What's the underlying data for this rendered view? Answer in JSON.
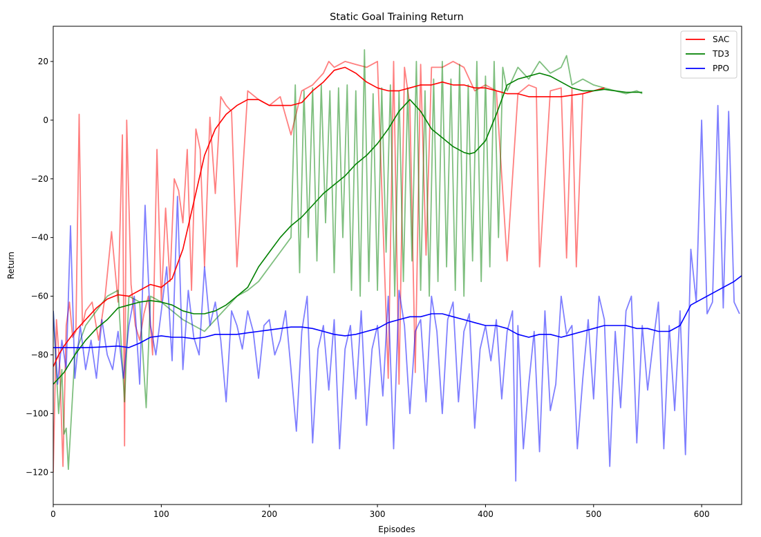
{
  "chart_data": {
    "type": "line",
    "title": "Static Goal Training Return",
    "xlabel": "Episodes",
    "ylabel": "Return",
    "xlim": [
      0,
      637
    ],
    "ylim": [
      -131,
      32
    ],
    "xticks": [
      0,
      100,
      200,
      300,
      400,
      500,
      600
    ],
    "yticks": [
      -120,
      -100,
      -80,
      -60,
      -40,
      -20,
      0,
      20
    ],
    "legend_position": "top-right",
    "grid": false,
    "series": [
      {
        "name": "SAC",
        "color": "#ff0000",
        "smoothed_x": [
          0,
          5,
          10,
          20,
          30,
          40,
          50,
          60,
          70,
          80,
          90,
          100,
          110,
          120,
          130,
          140,
          150,
          160,
          170,
          180,
          190,
          200,
          210,
          220,
          230,
          240,
          250,
          260,
          270,
          280,
          290,
          300,
          310,
          320,
          330,
          340,
          350,
          360,
          370,
          380,
          390,
          400,
          410,
          420,
          430,
          440,
          450,
          460,
          470,
          480,
          490,
          500,
          510
        ],
        "smoothed_y": [
          -84,
          -80,
          -77,
          -72,
          -68,
          -64,
          -61,
          -59.5,
          -60,
          -58,
          -56,
          -57,
          -54,
          -44,
          -28,
          -12,
          -3,
          2,
          5,
          7,
          7,
          5,
          5,
          5,
          6,
          10,
          13,
          17,
          18,
          16,
          13,
          11,
          10,
          10,
          11,
          12,
          12,
          13,
          12,
          12,
          11,
          11,
          10,
          9,
          9,
          8,
          8,
          8,
          8,
          8.5,
          9,
          10,
          11
        ],
        "raw_x": [
          0,
          3,
          6,
          9,
          12,
          15,
          18,
          21,
          24,
          27,
          30,
          36,
          42,
          48,
          54,
          60,
          64,
          66,
          68,
          72,
          76,
          80,
          84,
          88,
          92,
          96,
          100,
          104,
          108,
          112,
          116,
          120,
          124,
          128,
          132,
          136,
          140,
          145,
          150,
          155,
          160,
          165,
          170,
          180,
          190,
          200,
          210,
          220,
          230,
          240,
          250,
          255,
          260,
          270,
          280,
          290,
          300,
          310,
          315,
          320,
          325,
          330,
          335,
          340,
          345,
          350,
          360,
          370,
          380,
          390,
          400,
          410,
          420,
          430,
          440,
          447,
          450,
          460,
          470,
          475,
          480,
          484,
          490,
          500
        ],
        "raw_y": [
          -120,
          -68,
          -84,
          -118,
          -70,
          -62,
          -74,
          -72,
          2,
          -70,
          -65,
          -62,
          -75,
          -60,
          -38,
          -62,
          -5,
          -111,
          0,
          -56,
          -70,
          -75,
          -66,
          -60,
          -80,
          -10,
          -62,
          -30,
          -55,
          -20,
          -24,
          -35,
          -10,
          -58,
          -3,
          -10,
          -50,
          1,
          -25,
          8,
          5,
          3,
          -50,
          10,
          7,
          5,
          8,
          -5,
          10,
          12,
          16,
          20,
          18,
          20,
          19,
          18,
          20,
          -88,
          20,
          -90,
          18,
          5,
          -86,
          19,
          -46,
          18,
          18,
          20,
          18,
          10,
          12,
          10,
          -48,
          9,
          12,
          11,
          -50,
          10,
          11,
          -47,
          11,
          -50,
          9,
          10
        ]
      },
      {
        "name": "TD3",
        "color": "#008000",
        "smoothed_x": [
          0,
          10,
          20,
          30,
          40,
          50,
          60,
          70,
          80,
          90,
          100,
          110,
          120,
          130,
          140,
          150,
          160,
          170,
          180,
          190,
          200,
          210,
          220,
          230,
          240,
          250,
          260,
          270,
          280,
          290,
          300,
          310,
          320,
          330,
          340,
          350,
          360,
          370,
          380,
          385,
          390,
          400,
          410,
          420,
          430,
          440,
          450,
          460,
          470,
          480,
          490,
          500,
          510,
          520,
          530,
          540,
          545
        ],
        "smoothed_y": [
          -90,
          -86,
          -80,
          -75,
          -71,
          -68,
          -64,
          -63,
          -62,
          -61.5,
          -62,
          -63,
          -65,
          -66,
          -66,
          -65,
          -63,
          -60,
          -57,
          -50,
          -45,
          -40,
          -36,
          -33,
          -29,
          -25,
          -22,
          -19,
          -15,
          -12,
          -8,
          -3,
          3,
          7,
          3,
          -3,
          -6,
          -9,
          -11,
          -11.5,
          -11,
          -7,
          2,
          12,
          14,
          15,
          16,
          15,
          13,
          11,
          10,
          10,
          10.5,
          10,
          9.5,
          9.5,
          9.5
        ],
        "raw_x": [
          0,
          5,
          8,
          10,
          12,
          14,
          20,
          30,
          40,
          50,
          60,
          66,
          70,
          80,
          86,
          90,
          100,
          110,
          120,
          130,
          140,
          150,
          160,
          170,
          180,
          190,
          200,
          210,
          220,
          224,
          228,
          232,
          236,
          240,
          244,
          248,
          252,
          256,
          260,
          264,
          268,
          272,
          276,
          280,
          284,
          288,
          292,
          296,
          300,
          304,
          308,
          312,
          316,
          320,
          324,
          328,
          332,
          336,
          340,
          344,
          348,
          352,
          356,
          360,
          364,
          368,
          372,
          376,
          380,
          384,
          388,
          392,
          396,
          400,
          404,
          408,
          412,
          416,
          420,
          430,
          440,
          450,
          460,
          470,
          475,
          480,
          490,
          500,
          510,
          520,
          530,
          540,
          545
        ],
        "raw_y": [
          -65,
          -100,
          -85,
          -107,
          -105,
          -119,
          -80,
          -70,
          -65,
          -60,
          -58,
          -96,
          -60,
          -62,
          -98,
          -60,
          -62,
          -65,
          -68,
          -70,
          -72,
          -68,
          -64,
          -60,
          -58,
          -55,
          -50,
          -45,
          -40,
          12,
          -52,
          10,
          -40,
          11,
          -48,
          12,
          -35,
          10,
          -52,
          11,
          -40,
          12,
          -58,
          10,
          -60,
          24,
          -55,
          9,
          -58,
          11,
          -45,
          12,
          -60,
          10,
          -55,
          11,
          -48,
          20,
          -58,
          10,
          -60,
          14,
          -55,
          20,
          -50,
          14,
          -58,
          19,
          -60,
          12,
          -48,
          20,
          -55,
          15,
          -50,
          20,
          -40,
          18,
          10,
          18,
          14,
          20,
          16,
          18,
          22,
          12,
          14,
          12,
          11,
          10,
          9,
          10,
          9
        ]
      },
      {
        "name": "PPO",
        "color": "#0000ff",
        "smoothed_x": [
          0,
          10,
          20,
          30,
          40,
          50,
          60,
          70,
          80,
          90,
          100,
          110,
          120,
          130,
          140,
          150,
          160,
          170,
          180,
          190,
          200,
          210,
          220,
          230,
          240,
          250,
          260,
          270,
          280,
          290,
          300,
          310,
          320,
          330,
          340,
          350,
          360,
          370,
          380,
          390,
          400,
          410,
          420,
          430,
          440,
          450,
          460,
          470,
          480,
          490,
          500,
          510,
          520,
          530,
          540,
          550,
          560,
          570,
          580,
          590,
          600,
          610,
          620,
          630,
          637
        ],
        "smoothed_y": [
          -77.5,
          -77.5,
          -77.5,
          -77.5,
          -77.4,
          -77.2,
          -77,
          -77.5,
          -76,
          -74,
          -73.5,
          -74,
          -74,
          -74.5,
          -74,
          -73,
          -73,
          -73,
          -72.5,
          -72,
          -71.5,
          -71,
          -70.5,
          -70.5,
          -71,
          -72,
          -73,
          -73.5,
          -73,
          -72,
          -71,
          -69,
          -68,
          -67,
          -67,
          -66,
          -66,
          -67,
          -68,
          -69,
          -70,
          -70,
          -71,
          -73,
          -74,
          -73,
          -73,
          -74,
          -73,
          -72,
          -71,
          -70,
          -70,
          -70,
          -71,
          -71,
          -72,
          -72,
          -70,
          -63,
          -61,
          -59,
          -57,
          -55,
          -53
        ],
        "raw_x": [
          0,
          4,
          8,
          12,
          16,
          20,
          25,
          30,
          35,
          40,
          45,
          50,
          55,
          60,
          65,
          70,
          75,
          80,
          85,
          90,
          95,
          100,
          105,
          110,
          115,
          120,
          125,
          130,
          135,
          140,
          145,
          150,
          155,
          160,
          165,
          170,
          175,
          180,
          185,
          190,
          195,
          200,
          205,
          210,
          215,
          220,
          225,
          230,
          235,
          240,
          245,
          250,
          255,
          260,
          265,
          270,
          275,
          280,
          285,
          290,
          295,
          300,
          305,
          310,
          315,
          320,
          325,
          330,
          335,
          340,
          345,
          350,
          355,
          360,
          365,
          370,
          375,
          380,
          385,
          390,
          395,
          400,
          405,
          410,
          415,
          420,
          425,
          428,
          430,
          435,
          440,
          445,
          450,
          455,
          460,
          465,
          470,
          475,
          480,
          485,
          490,
          495,
          500,
          505,
          510,
          515,
          520,
          525,
          530,
          535,
          540,
          545,
          550,
          555,
          560,
          565,
          570,
          575,
          580,
          585,
          590,
          595,
          600,
          605,
          610,
          615,
          620,
          625,
          630,
          635
        ],
        "raw_y": [
          -65,
          -90,
          -75,
          -85,
          -36,
          -88,
          -70,
          -85,
          -75,
          -88,
          -68,
          -80,
          -85,
          -72,
          -88,
          -70,
          -60,
          -90,
          -29,
          -70,
          -80,
          -65,
          -50,
          -82,
          -26,
          -85,
          -58,
          -74,
          -80,
          -50,
          -70,
          -62,
          -75,
          -96,
          -65,
          -70,
          -78,
          -65,
          -72,
          -88,
          -70,
          -68,
          -80,
          -75,
          -65,
          -85,
          -106,
          -72,
          -60,
          -110,
          -78,
          -70,
          -92,
          -68,
          -112,
          -78,
          -70,
          -95,
          -65,
          -104,
          -78,
          -70,
          -94,
          -60,
          -112,
          -58,
          -70,
          -100,
          -72,
          -68,
          -96,
          -60,
          -72,
          -100,
          -68,
          -62,
          -96,
          -72,
          -66,
          -105,
          -78,
          -70,
          -82,
          -68,
          -95,
          -72,
          -65,
          -123,
          -70,
          -112,
          -90,
          -72,
          -113,
          -65,
          -99,
          -90,
          -60,
          -73,
          -70,
          -112,
          -88,
          -68,
          -95,
          -60,
          -68,
          -118,
          -72,
          -98,
          -65,
          -60,
          -110,
          -70,
          -92,
          -76,
          -62,
          -112,
          -70,
          -99,
          -65,
          -114,
          -44,
          -62,
          0,
          -66,
          -62,
          5,
          -64,
          3,
          -62,
          -66
        ]
      }
    ]
  }
}
